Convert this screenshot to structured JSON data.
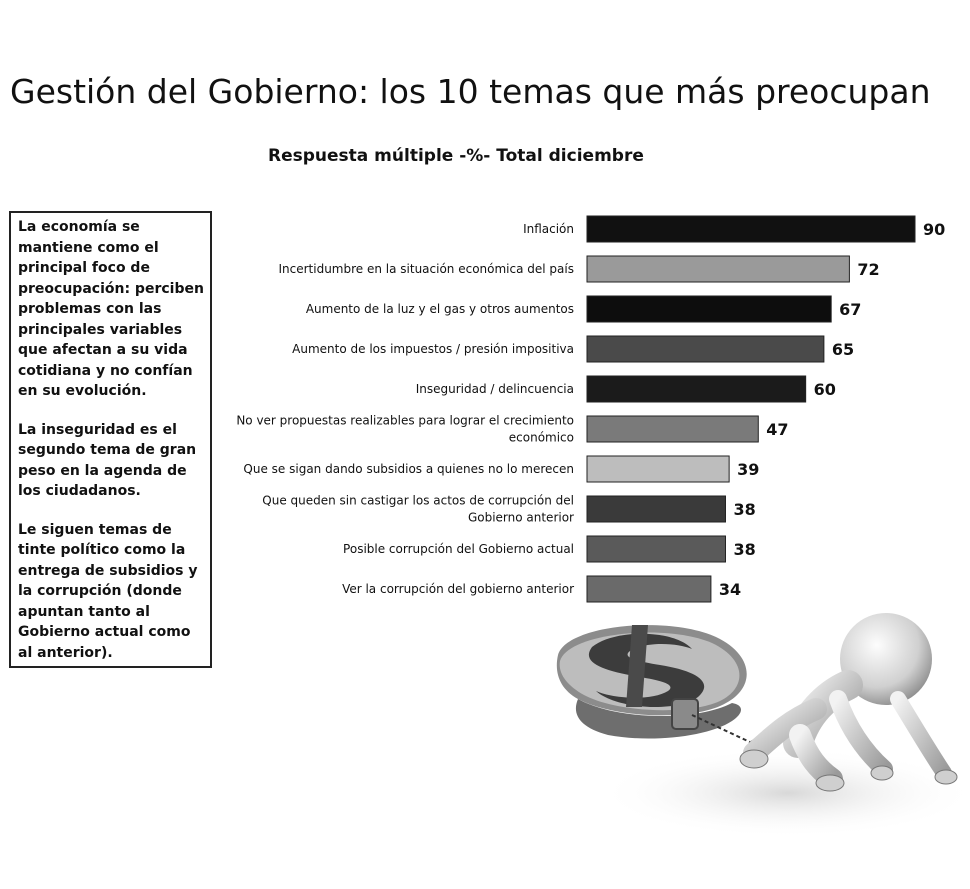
{
  "page": {
    "title": "Gestión del Gobierno: los 10 temas que más preocupan",
    "subtitle": "Respuesta múltiple -%- Total diciembre"
  },
  "side_box": {
    "paragraphs": [
      "La economía se mantiene como el principal foco de preocupación: perciben problemas con las principales variables que afectan a su vida cotidiana y no confían en su evolución.",
      "La inseguridad es el segundo tema de gran peso en la agenda de los ciudadanos.",
      "Le siguen temas de tinte político como la entrega de subsidios y la corrupción (donde apuntan tanto al Gobierno actual como al anterior)."
    ]
  },
  "chart_data": {
    "type": "bar",
    "orientation": "horizontal",
    "title": "Respuesta múltiple -%- Total diciembre",
    "categories": [
      [
        "Inflación"
      ],
      [
        "Incertidumbre en la situación económica del país"
      ],
      [
        "Aumento de la luz y el gas y otros aumentos"
      ],
      [
        "Aumento de los impuestos / presión impositiva"
      ],
      [
        "Inseguridad / delincuencia"
      ],
      [
        "No ver propuestas realizables para lograr el crecimiento",
        "económico"
      ],
      [
        "Que se sigan dando subsidios a quienes no lo merecen"
      ],
      [
        "Que queden sin castigar los actos de corrupción del",
        "Gobierno anterior"
      ],
      [
        "Posible corrupción del Gobierno actual"
      ],
      [
        "Ver la corrupción del gobierno anterior"
      ]
    ],
    "values": [
      90,
      72,
      67,
      65,
      60,
      47,
      39,
      38,
      38,
      34
    ],
    "bar_colors": [
      "#111111",
      "#9a9a9a",
      "#0d0d0d",
      "#4a4a4a",
      "#1b1b1b",
      "#7a7a7a",
      "#bdbdbd",
      "#3a3a3a",
      "#5a5a5a",
      "#6a6a6a"
    ],
    "xlim": [
      0,
      90
    ],
    "grid": false,
    "data_labels": true
  },
  "illustration": {
    "icons": [
      "dollar-sign-icon",
      "stick-figure-icon"
    ]
  }
}
